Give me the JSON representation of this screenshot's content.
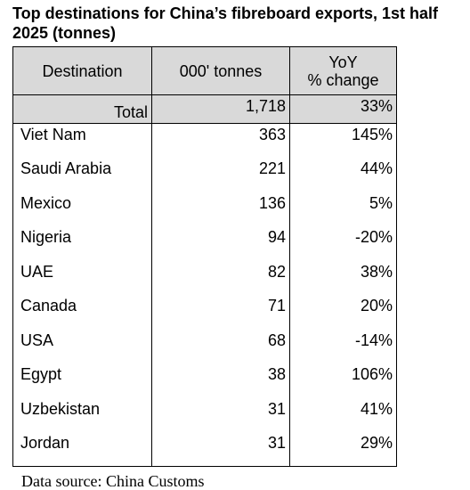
{
  "chart_data": {
    "type": "table",
    "title": "Top destinations for China’s fibreboard exports, 1st half 2025 (tonnes)",
    "columns": [
      "Destination",
      "000' tonnes",
      "YoY % change"
    ],
    "header": {
      "destination": "Destination",
      "tonnes": "000' tonnes",
      "yoy_line1": "YoY",
      "yoy_line2": "% change"
    },
    "total": {
      "label": "Total",
      "tonnes": "1,718",
      "yoy": "33%"
    },
    "rows": [
      {
        "destination": "Viet Nam",
        "tonnes": "363",
        "yoy": "145%"
      },
      {
        "destination": "Saudi Arabia",
        "tonnes": "221",
        "yoy": "44%"
      },
      {
        "destination": "Mexico",
        "tonnes": "136",
        "yoy": "5%"
      },
      {
        "destination": "Nigeria",
        "tonnes": "94",
        "yoy": "-20%"
      },
      {
        "destination": "UAE",
        "tonnes": "82",
        "yoy": "38%"
      },
      {
        "destination": "Canada",
        "tonnes": "71",
        "yoy": "20%"
      },
      {
        "destination": "USA",
        "tonnes": "68",
        "yoy": "-14%"
      },
      {
        "destination": "Egypt",
        "tonnes": "38",
        "yoy": "106%"
      },
      {
        "destination": "Uzbekistan",
        "tonnes": "31",
        "yoy": "41%"
      },
      {
        "destination": "Jordan",
        "tonnes": "31",
        "yoy": "29%"
      }
    ],
    "source": "Data source: China Customs"
  }
}
